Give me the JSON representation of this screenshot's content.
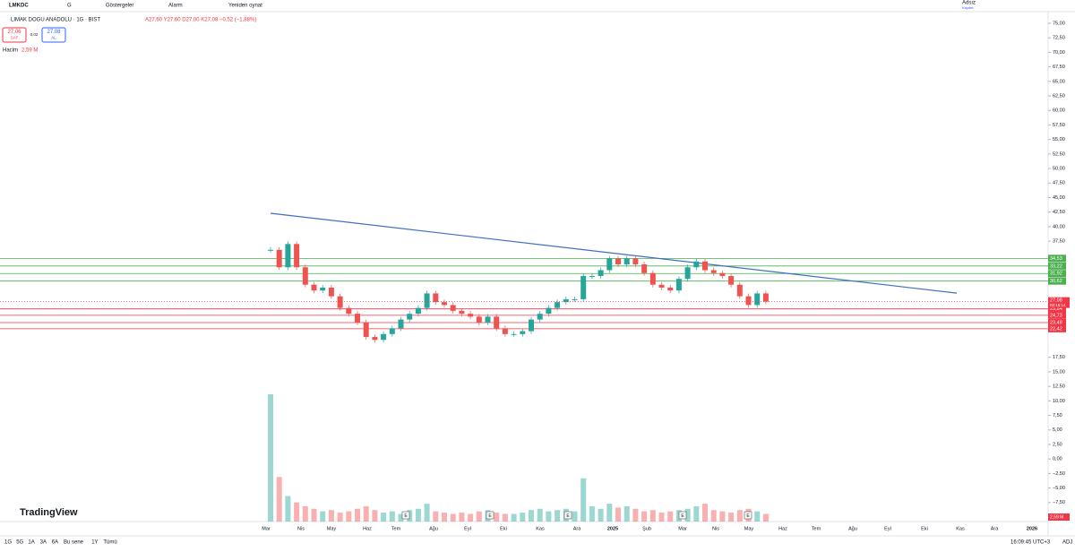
{
  "toolbar": {
    "symbol": "LMKDC",
    "interval": "G",
    "indicators": "Göstergeler",
    "alarm": "Alarm",
    "replay": "Yeniden oynat",
    "layout": "Adsız",
    "save": "Kaydet"
  },
  "legend": {
    "title": "LIMAK DOGU ANADOLU · 1G · BIST",
    "ohlc": "A27,60 Y27,60 D27,00 K27,08 −0,52 (−1,88%)",
    "sell_price": "27,06",
    "sell": "SAT",
    "spread": "0,02",
    "buy_price": "27,08",
    "buy": "AL",
    "volume_label": "Hacim",
    "volume_value": "2,59 M"
  },
  "chart_data": {
    "type": "candlestick",
    "ylim": [
      -10,
      75
    ],
    "yticks": [
      {
        "value": 75,
        "label": "75,00"
      },
      {
        "value": 72.5,
        "label": "72,50"
      },
      {
        "value": 70,
        "label": "70,00"
      },
      {
        "value": 67.5,
        "label": "67,50"
      },
      {
        "value": 65,
        "label": "65,00"
      },
      {
        "value": 62.5,
        "label": "62,50"
      },
      {
        "value": 60,
        "label": "60,00"
      },
      {
        "value": 57.5,
        "label": "57,50"
      },
      {
        "value": 55,
        "label": "55,00"
      },
      {
        "value": 52.5,
        "label": "52,50"
      },
      {
        "value": 50,
        "label": "50,00"
      },
      {
        "value": 47.5,
        "label": "47,50"
      },
      {
        "value": 45,
        "label": "45,00"
      },
      {
        "value": 42.5,
        "label": "42,50"
      },
      {
        "value": 40,
        "label": "40,00"
      },
      {
        "value": 37.5,
        "label": "37,50"
      },
      {
        "value": 17.5,
        "label": "17,50"
      },
      {
        "value": 15,
        "label": "15,00"
      },
      {
        "value": 12.5,
        "label": "12,50"
      },
      {
        "value": 10,
        "label": "10,00"
      },
      {
        "value": 7.5,
        "label": "7,50"
      },
      {
        "value": 5,
        "label": "5,00"
      },
      {
        "value": 2.5,
        "label": "2,50"
      },
      {
        "value": 0,
        "label": "0,00"
      },
      {
        "value": -2.5,
        "label": "−2,50"
      },
      {
        "value": -5,
        "label": "−5,00"
      },
      {
        "value": -7.5,
        "label": "−7,50"
      },
      {
        "value": -10,
        "label": "−10,00"
      }
    ],
    "time_labels": [
      "Mar",
      "Nis",
      "May",
      "Haz",
      "Tem",
      "Ağu",
      "Eyl",
      "Eki",
      "Kas",
      "Ara",
      "2025",
      "Şub",
      "Mar",
      "Nis",
      "May",
      "Haz",
      "Tem",
      "Ağu",
      "Eyl",
      "Eki",
      "Kas",
      "Ara",
      "2026"
    ],
    "closes": [
      36,
      33,
      37,
      33,
      30,
      29,
      29.5,
      28,
      26,
      25,
      23.5,
      21,
      20.5,
      21.5,
      22.5,
      24,
      25,
      26,
      28.5,
      27,
      26.5,
      25.5,
      25,
      24.5,
      23.5,
      24.5,
      22.5,
      21.5,
      21.5,
      22,
      24,
      25,
      26,
      27,
      27.5,
      27.5,
      31.5,
      31.5,
      32.5,
      34.5,
      33.5,
      34.5,
      33.5,
      32,
      30,
      29.5,
      29,
      31,
      33,
      34,
      32.5,
      32,
      31.5,
      30,
      28,
      26.5,
      28.5,
      27.08
    ],
    "volumes": [
      100,
      35,
      20,
      15,
      12,
      10,
      8,
      9,
      7,
      8,
      10,
      12,
      9,
      7,
      8,
      6,
      9,
      10,
      14,
      8,
      7,
      6,
      7,
      6,
      8,
      9,
      7,
      6,
      6,
      7,
      9,
      10,
      8,
      9,
      10,
      8,
      34,
      12,
      10,
      14,
      11,
      12,
      10,
      8,
      9,
      7,
      8,
      9,
      10,
      12,
      14,
      9,
      8,
      7,
      9,
      10,
      8,
      6
    ],
    "up_color": "#26a69a",
    "down_color": "#ef5350",
    "resistance_levels": [
      {
        "value": 34.53,
        "label": "34,53"
      },
      {
        "value": 33.22,
        "label": "33,22"
      },
      {
        "value": 31.92,
        "label": "31,92"
      },
      {
        "value": 30.62,
        "label": "30,62"
      }
    ],
    "support_levels": [
      {
        "value": 25.84,
        "label": "25,84"
      },
      {
        "value": 24.73,
        "label": "24,73"
      },
      {
        "value": 23.48,
        "label": "23,48"
      },
      {
        "value": 22.42,
        "label": "22,42"
      }
    ],
    "level_up_color": "#4caf50",
    "level_down_color": "#f23645",
    "current_price": {
      "value": 27.08,
      "label": "27,08",
      "countdown": "02:15:14"
    },
    "volume_tag": "2,59 M",
    "trendline": [
      42.3,
      28.55
    ],
    "trend_color": "#3f6fc4",
    "events": [
      "E",
      "E",
      "E",
      "E",
      "E"
    ]
  },
  "bottom": {
    "ranges": [
      "1G",
      "5G",
      "1A",
      "3A",
      "6A",
      "Bu sene",
      "1Y",
      "Tümü"
    ],
    "clock": "16:09:45 UTC+3",
    "adj": "ADJ"
  },
  "brand": "TradingView"
}
